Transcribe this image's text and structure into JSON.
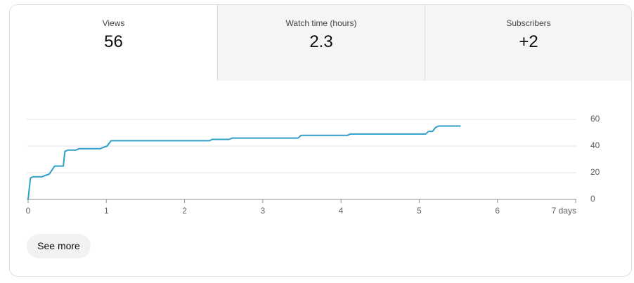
{
  "tabs": [
    {
      "label": "Views",
      "value": "56"
    },
    {
      "label": "Watch time (hours)",
      "value": "2.3"
    },
    {
      "label": "Subscribers",
      "value": "+2"
    }
  ],
  "button": "See more",
  "chart_data": {
    "type": "line",
    "x": [
      0,
      0.03,
      0.06,
      0.18,
      0.22,
      0.27,
      0.34,
      0.45,
      0.47,
      0.51,
      0.61,
      0.65,
      0.92,
      0.96,
      1.01,
      1.06,
      1.1,
      2.32,
      2.35,
      2.57,
      2.61,
      3.45,
      3.49,
      4.08,
      4.12,
      5.08,
      5.12,
      5.17,
      5.21,
      5.25,
      5.53
    ],
    "series": [
      {
        "color": "#2f9fc7",
        "values": [
          0,
          16,
          17,
          17,
          18,
          19,
          25,
          25,
          36,
          37,
          37,
          38,
          38,
          39,
          40,
          44,
          44,
          44,
          45,
          45,
          46,
          46,
          48,
          48,
          49,
          49,
          51,
          51,
          54,
          55,
          55
        ]
      }
    ],
    "xlim": [
      0,
      7
    ],
    "xticks": [
      0,
      1,
      2,
      3,
      4,
      5,
      6,
      {
        "value": 7,
        "label": "7 days"
      }
    ],
    "ylim": [
      0,
      60
    ],
    "yticks": [
      0,
      20,
      40,
      60
    ],
    "grid": true
  }
}
